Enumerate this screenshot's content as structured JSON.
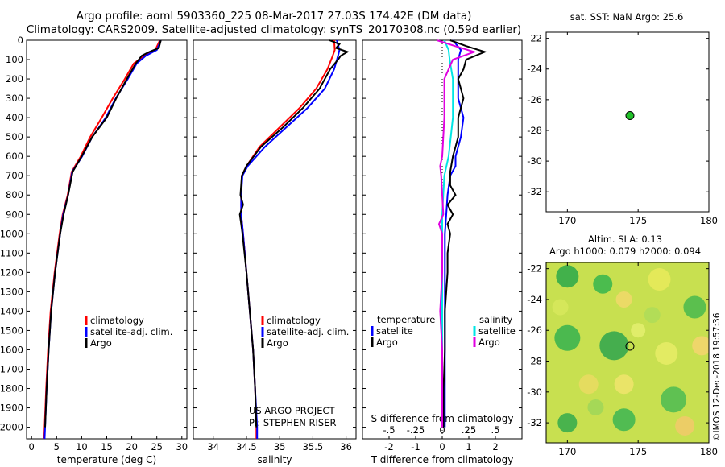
{
  "title": {
    "line1": "Argo profile: aoml 5903360_225 08-Mar-2017 27.03S 174.42E (DM data)",
    "line2": "Climatology: CARS2009. Satellite-adjusted climatology: synTS_20170308.nc (0.59d earlier)"
  },
  "colors": {
    "climatology": "#ff0000",
    "satellite": "#0000ff",
    "argo": "#000000",
    "sat_s": "#00e5e5",
    "clim_s": "#e000e0"
  },
  "depth_axis": {
    "ticks": [
      0,
      100,
      200,
      300,
      400,
      500,
      600,
      700,
      800,
      900,
      1000,
      1100,
      1200,
      1300,
      1400,
      1500,
      1600,
      1700,
      1800,
      1900,
      2000
    ],
    "range": [
      0,
      2060
    ]
  },
  "credits": {
    "line1": "US ARGO PROJECT",
    "line2": "PI: STEPHEN RISER"
  },
  "chart_data": [
    {
      "type": "line",
      "id": "temperature",
      "xlabel": "temperature (deg C)",
      "xlim": [
        -1,
        31
      ],
      "xticks": [
        0,
        5,
        10,
        15,
        20,
        25,
        30
      ],
      "legend": [
        "climatology",
        "satellite-adj. clim.",
        "Argo"
      ],
      "series": [
        {
          "name": "climatology",
          "depth": [
            0,
            50,
            80,
            120,
            200,
            300,
            400,
            500,
            600,
            680,
            800,
            900,
            1000,
            1200,
            1400,
            1600,
            1800,
            2000,
            2060
          ],
          "values": [
            25.6,
            24.7,
            22.5,
            20.4,
            18.6,
            16.2,
            14.0,
            11.7,
            9.8,
            8.0,
            7.2,
            6.2,
            5.6,
            4.6,
            3.8,
            3.3,
            2.9,
            2.6,
            2.5
          ]
        },
        {
          "name": "satellite",
          "depth": [
            0,
            50,
            80,
            120,
            200,
            300,
            400,
            500,
            600,
            680,
            800,
            900,
            1000,
            1200,
            1400,
            1600,
            1800,
            2000,
            2060
          ],
          "values": [
            25.8,
            25.0,
            22.8,
            21.0,
            19.2,
            16.8,
            14.8,
            12.1,
            10.1,
            8.1,
            7.3,
            6.3,
            5.7,
            4.7,
            3.9,
            3.4,
            3.0,
            2.7,
            2.6
          ]
        },
        {
          "name": "Argo",
          "depth": [
            0,
            40,
            60,
            80,
            120,
            200,
            300,
            400,
            500,
            600,
            680,
            800,
            900,
            1000,
            1200,
            1400,
            1600,
            1800,
            2000
          ],
          "values": [
            25.8,
            25.4,
            23.5,
            22.0,
            20.8,
            19.0,
            16.9,
            15.0,
            12.1,
            10.0,
            8.2,
            7.3,
            6.4,
            5.7,
            4.7,
            3.9,
            3.4,
            3.0,
            2.7
          ]
        }
      ]
    },
    {
      "type": "line",
      "id": "salinity",
      "xlabel": "salinity",
      "xlim": [
        33.7,
        36.15
      ],
      "xticks": [
        34,
        34.5,
        35,
        35.5,
        36
      ],
      "legend": [
        "climatology",
        "satellite-adj. clim.",
        "Argo"
      ],
      "series": [
        {
          "name": "climatology",
          "depth": [
            0,
            50,
            80,
            150,
            250,
            350,
            450,
            550,
            650,
            700,
            800,
            900,
            1000,
            1200,
            1400,
            1600,
            1800,
            2000,
            2060
          ],
          "values": [
            35.82,
            35.83,
            35.8,
            35.72,
            35.55,
            35.3,
            35.0,
            34.7,
            34.5,
            34.43,
            34.42,
            34.42,
            34.45,
            34.5,
            34.55,
            34.6,
            34.63,
            34.65,
            34.65
          ]
        },
        {
          "name": "satellite",
          "depth": [
            0,
            50,
            80,
            150,
            250,
            350,
            450,
            550,
            650,
            700,
            800,
            900,
            1000,
            1200,
            1400,
            1600,
            1800,
            2000,
            2060
          ],
          "values": [
            35.86,
            35.9,
            35.88,
            35.82,
            35.68,
            35.42,
            35.1,
            34.78,
            34.52,
            34.44,
            34.42,
            34.42,
            34.45,
            34.5,
            34.55,
            34.6,
            34.63,
            34.66,
            34.66
          ]
        },
        {
          "name": "Argo",
          "depth": [
            0,
            20,
            40,
            60,
            80,
            100,
            150,
            250,
            350,
            450,
            550,
            650,
            700,
            800,
            850,
            900,
            950,
            1000,
            1200,
            1400,
            1600,
            1800,
            2000
          ],
          "values": [
            35.75,
            35.9,
            35.85,
            36.02,
            35.92,
            35.88,
            35.76,
            35.6,
            35.35,
            35.05,
            34.72,
            34.5,
            34.43,
            34.41,
            34.45,
            34.4,
            34.42,
            34.44,
            34.5,
            34.55,
            34.6,
            34.63,
            34.65
          ]
        }
      ]
    },
    {
      "type": "line",
      "id": "difference",
      "xlabel": "T difference from climatology",
      "xlim": [
        -3,
        3
      ],
      "xticks": [
        -2,
        -1,
        0,
        1,
        2
      ],
      "top_label": "S difference from climatology",
      "top_ticks": [
        -0.5,
        -0.25,
        0,
        0.25,
        0.5
      ],
      "legend_temperature_header": "temperature",
      "legend_salinity_header": "salinity",
      "legend_temperature": [
        "satellite",
        "Argo"
      ],
      "legend_salinity": [
        "satellite",
        "Argo"
      ],
      "series": [
        {
          "name": "T satellite",
          "depth": [
            0,
            50,
            100,
            200,
            300,
            400,
            500,
            600,
            650,
            700,
            800,
            900,
            1000,
            1200,
            1400,
            1600,
            1800,
            2000
          ],
          "values": [
            0.4,
            0.7,
            0.6,
            0.6,
            0.6,
            0.8,
            0.7,
            0.5,
            0.5,
            0.3,
            0.2,
            0.15,
            0.1,
            0.1,
            0.1,
            0.1,
            0.1,
            0.1
          ]
        },
        {
          "name": "T Argo",
          "depth": [
            0,
            30,
            60,
            100,
            150,
            200,
            300,
            400,
            500,
            600,
            680,
            750,
            800,
            850,
            900,
            950,
            1000,
            1100,
            1200,
            1300,
            1400,
            1600,
            1800,
            2000
          ],
          "values": [
            0.3,
            0.9,
            1.6,
            0.9,
            0.8,
            0.6,
            0.8,
            0.6,
            0.6,
            0.4,
            0.3,
            0.3,
            0.5,
            0.2,
            0.4,
            0.2,
            0.3,
            0.2,
            0.2,
            0.15,
            0.1,
            0.1,
            0.05,
            0.05
          ]
        },
        {
          "name": "S satellite",
          "depth": [
            0,
            50,
            100,
            200,
            300,
            400,
            500,
            600,
            700,
            800,
            900,
            1000,
            1200,
            1400,
            1600,
            1800,
            2000
          ],
          "values": [
            0.02,
            0.06,
            0.07,
            0.1,
            0.1,
            0.1,
            0.08,
            0.06,
            0.02,
            0.01,
            0.0,
            0.0,
            0.0,
            0.0,
            0.0,
            0.0,
            0.0
          ]
        },
        {
          "name": "S Argo",
          "depth": [
            0,
            30,
            60,
            100,
            200,
            300,
            400,
            500,
            600,
            650,
            700,
            800,
            900,
            950,
            1000,
            1200,
            1400,
            1600,
            1800,
            2000
          ],
          "values": [
            -0.05,
            0.12,
            0.3,
            0.1,
            0.02,
            0.02,
            0.02,
            0.01,
            0.0,
            -0.02,
            -0.01,
            0.0,
            0.01,
            -0.03,
            0.0,
            0.0,
            -0.02,
            0.0,
            0.0,
            0.0
          ]
        }
      ]
    },
    {
      "type": "scatter",
      "id": "sst_map",
      "title": "sat. SST: NaN Argo: 25.6",
      "xlim": [
        168.5,
        180
      ],
      "ylim": [
        -33.3,
        -21.6
      ],
      "xticks": [
        170,
        175,
        180
      ],
      "yticks": [
        -22,
        -24,
        -26,
        -28,
        -30,
        -32
      ],
      "points": [
        {
          "x": 174.42,
          "y": -27.03
        }
      ]
    },
    {
      "type": "heatmap",
      "id": "sla_map",
      "title_line1": "Altim. SLA: 0.13",
      "title_line2": "Argo h1000: 0.079 h2000: 0.094",
      "xlim": [
        168.5,
        180
      ],
      "ylim": [
        -33.3,
        -21.6
      ],
      "xticks": [
        170,
        175,
        180
      ],
      "yticks": [
        -22,
        -24,
        -26,
        -28,
        -30,
        -32
      ],
      "points": [
        {
          "x": 174.42,
          "y": -27.03
        }
      ]
    }
  ],
  "footer_stamp": "©IMOS 12-Dec-2018 19:57:36"
}
